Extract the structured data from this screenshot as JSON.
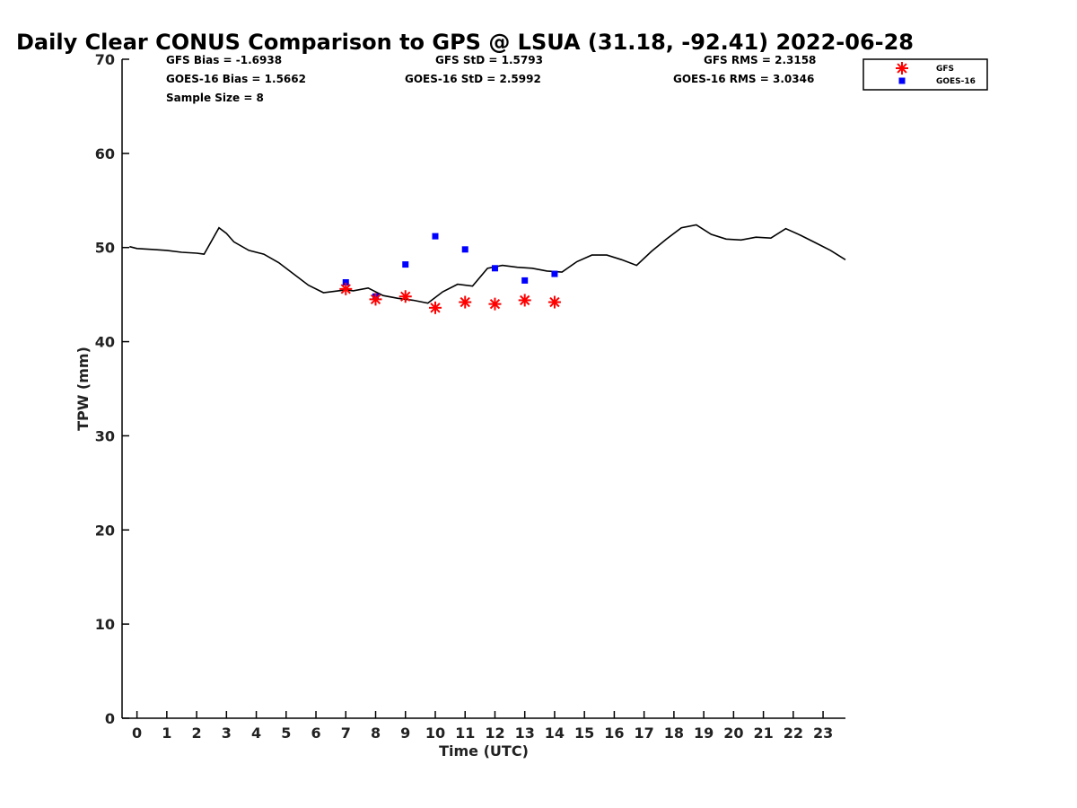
{
  "chart_data": {
    "type": "line",
    "title": "Daily Clear CONUS Comparison to GPS @ LSUA (31.18, -92.41) 2022-06-28",
    "xlabel": "Time (UTC)",
    "ylabel": "TPW (mm)",
    "xlim": [
      -0.5,
      23.75
    ],
    "ylim": [
      0,
      70
    ],
    "xticks": [
      "0",
      "1",
      "2",
      "3",
      "4",
      "5",
      "6",
      "7",
      "8",
      "9",
      "10",
      "11",
      "12",
      "13",
      "14",
      "15",
      "16",
      "17",
      "18",
      "19",
      "20",
      "21",
      "22",
      "23"
    ],
    "yticks": [
      "0",
      "10",
      "20",
      "30",
      "40",
      "50",
      "60",
      "70"
    ],
    "grid": false,
    "legend_position": "top-right",
    "stats": {
      "gfs_bias": "GFS Bias = -1.6938",
      "goes_bias": "GOES-16 Bias = 1.5662",
      "sample_size": "Sample Size = 8",
      "gfs_std": "GFS StD = 1.5793",
      "goes_std": "GOES-16 StD = 2.5992",
      "gfs_rms": "GFS RMS = 2.3158",
      "goes_rms": "GOES-16 RMS = 3.0346"
    },
    "gps_line": {
      "color": "#000000",
      "x": [
        -0.25,
        0,
        0.5,
        1,
        1.5,
        2,
        2.25,
        2.75,
        3,
        3.25,
        3.75,
        4.25,
        4.75,
        5.25,
        5.75,
        6.25,
        6.75,
        7,
        7.25,
        7.75,
        8.25,
        8.75,
        9.25,
        9.75,
        10.25,
        10.75,
        11.25,
        11.75,
        12.25,
        12.75,
        13.25,
        13.75,
        14.25,
        14.75,
        15.25,
        15.75,
        16.25,
        16.75,
        17.25,
        17.75,
        18.25,
        18.75,
        19.25,
        19.75,
        20.25,
        20.75,
        21.25,
        21.75,
        22.25,
        22.75,
        23.25,
        23.75
      ],
      "y": [
        50.1,
        49.9,
        49.8,
        49.7,
        49.5,
        49.4,
        49.3,
        52.1,
        51.5,
        50.6,
        49.7,
        49.3,
        48.4,
        47.2,
        46.0,
        45.2,
        45.4,
        45.5,
        45.4,
        45.7,
        44.9,
        44.6,
        44.4,
        44.1,
        45.3,
        46.1,
        45.9,
        47.8,
        48.1,
        47.9,
        47.8,
        47.5,
        47.4,
        48.5,
        49.2,
        49.2,
        48.7,
        48.1,
        49.6,
        50.9,
        52.1,
        52.4,
        51.4,
        50.9,
        50.8,
        51.1,
        51.0,
        52.0,
        51.3,
        50.5,
        49.7,
        48.7
      ]
    },
    "series": [
      {
        "name": "GFS",
        "marker": "asterisk",
        "color": "#ff0000",
        "x": [
          7,
          8,
          9,
          10,
          11,
          12,
          13,
          14
        ],
        "y": [
          45.6,
          44.5,
          44.8,
          43.6,
          44.2,
          44.0,
          44.4,
          44.2
        ]
      },
      {
        "name": "GOES-16",
        "marker": "square",
        "color": "#0000ff",
        "x": [
          7,
          8,
          9,
          10,
          11,
          12,
          13,
          14
        ],
        "y": [
          46.3,
          44.8,
          48.2,
          51.2,
          49.8,
          47.8,
          46.5,
          47.2
        ]
      }
    ]
  }
}
